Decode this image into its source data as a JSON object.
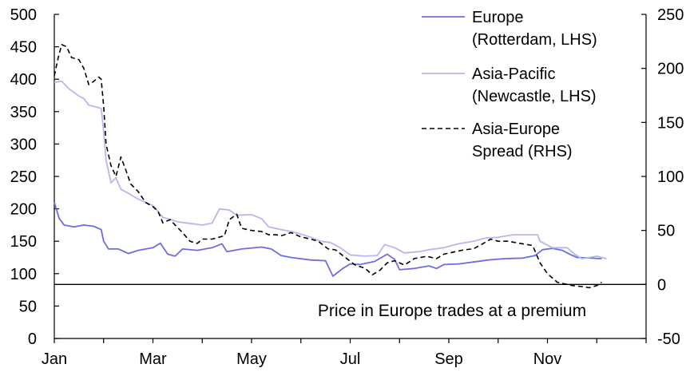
{
  "chart_data": {
    "type": "line",
    "title": "",
    "xlabel": "",
    "ylabel_left": "",
    "ylabel_right": "",
    "left_axis": {
      "min": 0,
      "max": 500,
      "ticks": [
        0,
        50,
        100,
        150,
        200,
        250,
        300,
        350,
        400,
        450,
        500
      ]
    },
    "right_axis": {
      "min": -50,
      "max": 250,
      "ticks": [
        -50,
        0,
        50,
        100,
        150,
        200,
        250
      ]
    },
    "x_axis": {
      "min": 0,
      "max": 12,
      "tick_positions": [
        0,
        2,
        4,
        6,
        8,
        10
      ],
      "tick_labels": [
        "Jan",
        "Mar",
        "May",
        "Jul",
        "Sep",
        "Nov"
      ]
    },
    "grid": false,
    "legend_position": "top-right",
    "zero_line_right_axis": 0,
    "annotation": "Price in Europe trades at a premium",
    "series": [
      {
        "name": "Europe\n(Rotterdam, LHS)",
        "axis": "left",
        "color": "#6d6de0",
        "style": "solid",
        "points": [
          [
            0.0,
            210
          ],
          [
            0.1,
            185
          ],
          [
            0.2,
            175
          ],
          [
            0.4,
            172
          ],
          [
            0.6,
            175
          ],
          [
            0.8,
            173
          ],
          [
            0.95,
            168
          ],
          [
            1.0,
            150
          ],
          [
            1.1,
            138
          ],
          [
            1.3,
            138
          ],
          [
            1.5,
            131
          ],
          [
            1.7,
            136
          ],
          [
            2.0,
            140
          ],
          [
            2.15,
            147
          ],
          [
            2.3,
            130
          ],
          [
            2.45,
            127
          ],
          [
            2.6,
            138
          ],
          [
            2.9,
            136
          ],
          [
            3.2,
            140
          ],
          [
            3.4,
            146
          ],
          [
            3.5,
            134
          ],
          [
            3.8,
            138
          ],
          [
            4.2,
            141
          ],
          [
            4.4,
            138
          ],
          [
            4.6,
            128
          ],
          [
            4.8,
            125
          ],
          [
            5.2,
            121
          ],
          [
            5.5,
            120
          ],
          [
            5.65,
            96
          ],
          [
            5.85,
            108
          ],
          [
            6.0,
            115
          ],
          [
            6.2,
            114
          ],
          [
            6.5,
            119
          ],
          [
            6.75,
            130
          ],
          [
            6.9,
            122
          ],
          [
            7.0,
            106
          ],
          [
            7.3,
            108
          ],
          [
            7.6,
            112
          ],
          [
            7.75,
            108
          ],
          [
            7.9,
            114
          ],
          [
            8.2,
            115
          ],
          [
            8.5,
            118
          ],
          [
            8.8,
            121
          ],
          [
            9.1,
            123
          ],
          [
            9.5,
            124
          ],
          [
            9.75,
            128
          ],
          [
            9.9,
            137
          ],
          [
            10.1,
            139
          ],
          [
            10.3,
            136
          ],
          [
            10.45,
            130
          ],
          [
            10.6,
            125
          ],
          [
            10.9,
            124
          ],
          [
            11.1,
            123
          ]
        ]
      },
      {
        "name": "Asia-Pacific\n(Newcastle, LHS)",
        "axis": "left",
        "color": "#b7b7ee",
        "style": "solid",
        "points": [
          [
            0.0,
            395
          ],
          [
            0.15,
            397
          ],
          [
            0.3,
            385
          ],
          [
            0.5,
            374
          ],
          [
            0.6,
            370
          ],
          [
            0.7,
            360
          ],
          [
            0.8,
            358
          ],
          [
            0.95,
            355
          ],
          [
            1.0,
            320
          ],
          [
            1.05,
            275
          ],
          [
            1.15,
            240
          ],
          [
            1.25,
            248
          ],
          [
            1.35,
            230
          ],
          [
            1.5,
            224
          ],
          [
            1.7,
            215
          ],
          [
            1.85,
            210
          ],
          [
            2.0,
            205
          ],
          [
            2.2,
            187
          ],
          [
            2.5,
            180
          ],
          [
            2.8,
            177
          ],
          [
            3.0,
            175
          ],
          [
            3.2,
            178
          ],
          [
            3.35,
            200
          ],
          [
            3.55,
            198
          ],
          [
            3.7,
            190
          ],
          [
            4.0,
            191
          ],
          [
            4.2,
            185
          ],
          [
            4.35,
            172
          ],
          [
            4.6,
            168
          ],
          [
            4.8,
            165
          ],
          [
            5.0,
            161
          ],
          [
            5.2,
            156
          ],
          [
            5.4,
            150
          ],
          [
            5.6,
            148
          ],
          [
            5.8,
            140
          ],
          [
            6.0,
            129
          ],
          [
            6.3,
            127
          ],
          [
            6.55,
            128
          ],
          [
            6.7,
            145
          ],
          [
            6.9,
            140
          ],
          [
            7.1,
            132
          ],
          [
            7.4,
            134
          ],
          [
            7.6,
            137
          ],
          [
            7.9,
            140
          ],
          [
            8.2,
            146
          ],
          [
            8.5,
            150
          ],
          [
            8.75,
            155
          ],
          [
            9.0,
            156
          ],
          [
            9.3,
            160
          ],
          [
            9.6,
            160
          ],
          [
            9.8,
            160
          ],
          [
            9.85,
            150
          ],
          [
            10.1,
            140
          ],
          [
            10.4,
            140
          ],
          [
            10.55,
            130
          ],
          [
            10.7,
            123
          ],
          [
            11.0,
            127
          ],
          [
            11.2,
            123
          ]
        ]
      },
      {
        "name": "Asia-Europe\nSpread (RHS)",
        "axis": "right",
        "color": "#000000",
        "style": "dashed",
        "points": [
          [
            0.0,
            193
          ],
          [
            0.08,
            210
          ],
          [
            0.15,
            222
          ],
          [
            0.25,
            220
          ],
          [
            0.35,
            210
          ],
          [
            0.5,
            208
          ],
          [
            0.6,
            200
          ],
          [
            0.7,
            185
          ],
          [
            0.8,
            188
          ],
          [
            0.9,
            192
          ],
          [
            0.95,
            190
          ],
          [
            1.0,
            165
          ],
          [
            1.05,
            130
          ],
          [
            1.15,
            110
          ],
          [
            1.25,
            100
          ],
          [
            1.35,
            118
          ],
          [
            1.45,
            106
          ],
          [
            1.55,
            93
          ],
          [
            1.7,
            86
          ],
          [
            1.85,
            76
          ],
          [
            2.0,
            72
          ],
          [
            2.1,
            68
          ],
          [
            2.2,
            57
          ],
          [
            2.35,
            60
          ],
          [
            2.45,
            55
          ],
          [
            2.6,
            48
          ],
          [
            2.75,
            40
          ],
          [
            2.9,
            38
          ],
          [
            3.0,
            42
          ],
          [
            3.2,
            42
          ],
          [
            3.45,
            45
          ],
          [
            3.55,
            60
          ],
          [
            3.7,
            65
          ],
          [
            3.8,
            52
          ],
          [
            4.0,
            50
          ],
          [
            4.2,
            49
          ],
          [
            4.35,
            46
          ],
          [
            4.5,
            46
          ],
          [
            4.6,
            45
          ],
          [
            4.8,
            48
          ],
          [
            5.0,
            44
          ],
          [
            5.2,
            42
          ],
          [
            5.35,
            40
          ],
          [
            5.55,
            33
          ],
          [
            5.7,
            32
          ],
          [
            5.9,
            25
          ],
          [
            6.1,
            18
          ],
          [
            6.3,
            15
          ],
          [
            6.45,
            9
          ],
          [
            6.6,
            13
          ],
          [
            6.75,
            20
          ],
          [
            6.9,
            22
          ],
          [
            7.1,
            18
          ],
          [
            7.3,
            24
          ],
          [
            7.55,
            26
          ],
          [
            7.75,
            24
          ],
          [
            7.9,
            28
          ],
          [
            8.1,
            30
          ],
          [
            8.3,
            32
          ],
          [
            8.5,
            33
          ],
          [
            8.7,
            38
          ],
          [
            8.85,
            42
          ],
          [
            9.0,
            40
          ],
          [
            9.2,
            40
          ],
          [
            9.45,
            38
          ],
          [
            9.7,
            36
          ],
          [
            9.85,
            20
          ],
          [
            10.0,
            10
          ],
          [
            10.2,
            2
          ],
          [
            10.5,
            -1
          ],
          [
            10.7,
            -2
          ],
          [
            10.85,
            -3
          ],
          [
            11.0,
            -1
          ],
          [
            11.1,
            2
          ]
        ]
      }
    ]
  }
}
